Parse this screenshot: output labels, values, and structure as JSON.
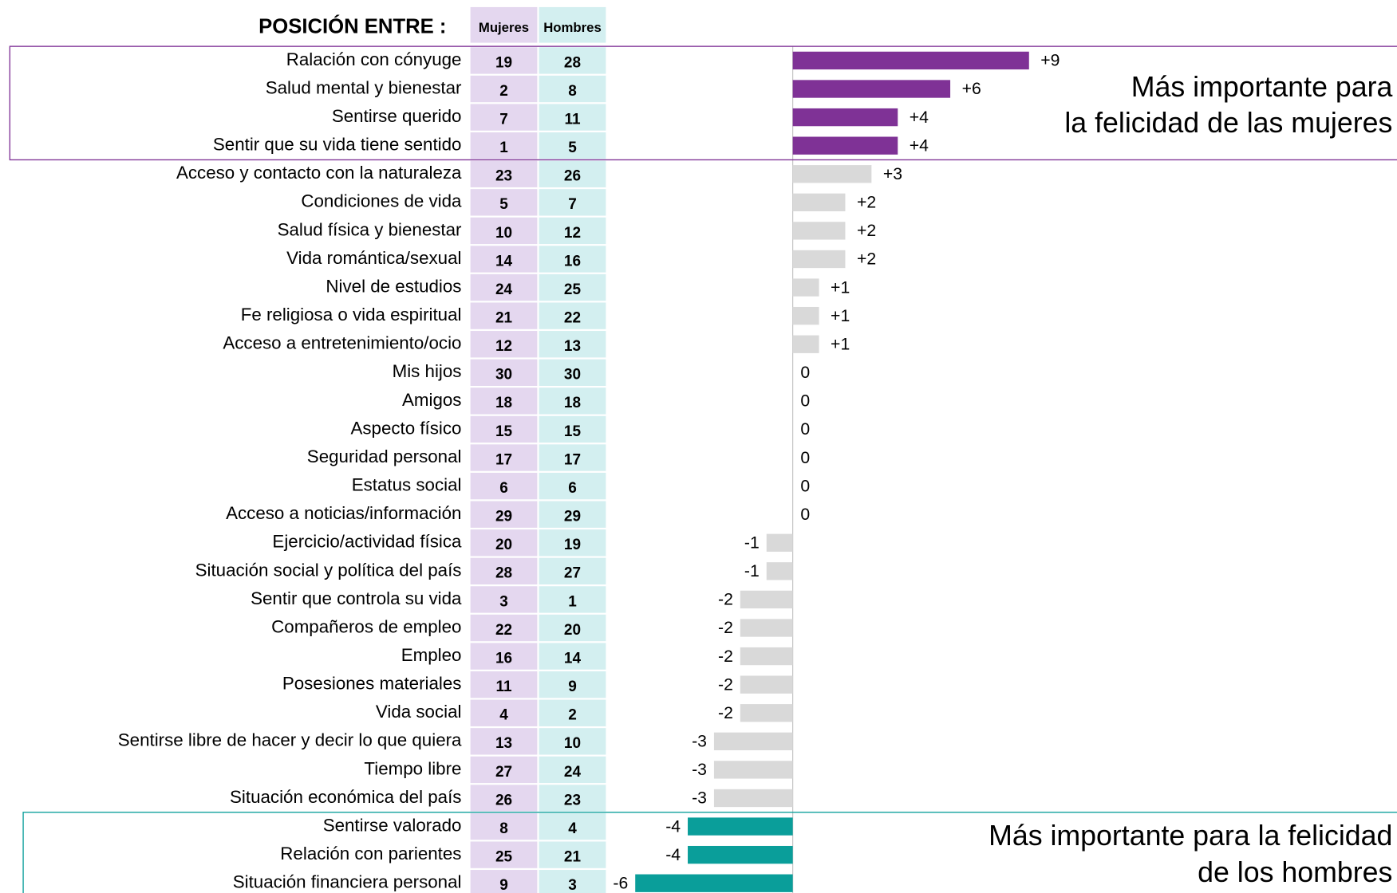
{
  "chart_data": {
    "type": "bar",
    "title": "POSICIÓN ENTRE :",
    "columns": [
      "Mujeres",
      "Hombres"
    ],
    "categories": [
      "Ralación con cónyuge",
      "Salud mental y bienestar",
      "Sentirse querido",
      "Sentir que su vida tiene sentido",
      "Acceso y contacto con la naturaleza",
      "Condiciones de vida",
      "Salud física y bienestar",
      "Vida romántica/sexual",
      "Nivel de estudios",
      "Fe religiosa o vida espiritual",
      "Acceso a entretenimiento/ocio",
      "Mis hijos",
      "Amigos",
      "Aspecto físico",
      "Seguridad personal",
      "Estatus social",
      "Acceso a noticias/información",
      "Ejercicio/actividad física",
      "Situación social y política del país",
      "Sentir que controla su vida",
      "Compañeros de empleo",
      "Empleo",
      "Posesiones materiales",
      "Vida social",
      "Sentirse libre de hacer y decir lo que quiera",
      "Tiempo libre",
      "Situación económica del país",
      "Sentirse valorado",
      "Relación con parientes",
      "Situación financiera personal"
    ],
    "mujeres": [
      19,
      2,
      7,
      1,
      23,
      5,
      10,
      14,
      24,
      21,
      12,
      30,
      18,
      15,
      17,
      6,
      29,
      20,
      28,
      3,
      22,
      16,
      11,
      4,
      13,
      27,
      26,
      8,
      25,
      9
    ],
    "hombres": [
      28,
      8,
      11,
      5,
      26,
      7,
      12,
      16,
      25,
      22,
      13,
      30,
      18,
      15,
      17,
      6,
      29,
      19,
      27,
      1,
      20,
      14,
      9,
      2,
      10,
      24,
      23,
      4,
      21,
      3
    ],
    "values": [
      9,
      6,
      4,
      4,
      3,
      2,
      2,
      2,
      1,
      1,
      1,
      0,
      0,
      0,
      0,
      0,
      0,
      -1,
      -1,
      -2,
      -2,
      -2,
      -2,
      -2,
      -3,
      -3,
      -3,
      -4,
      -4,
      -6
    ],
    "value_labels": [
      "+9",
      "+6",
      "+4",
      "+4",
      "+3",
      "+2",
      "+2",
      "+2",
      "+1",
      "+1",
      "+1",
      "0",
      "0",
      "0",
      "0",
      "0",
      "0",
      "-1",
      "-1",
      "-2",
      "-2",
      "-2",
      "-2",
      "-2",
      "-3",
      "-3",
      "-3",
      "-4",
      "-4",
      "-6"
    ],
    "colors": [
      "#7f3296",
      "#7f3296",
      "#7f3296",
      "#7f3296",
      "#d9d9d9",
      "#d9d9d9",
      "#d9d9d9",
      "#d9d9d9",
      "#d9d9d9",
      "#d9d9d9",
      "#d9d9d9",
      "#d9d9d9",
      "#d9d9d9",
      "#d9d9d9",
      "#d9d9d9",
      "#d9d9d9",
      "#d9d9d9",
      "#d9d9d9",
      "#d9d9d9",
      "#d9d9d9",
      "#d9d9d9",
      "#d9d9d9",
      "#d9d9d9",
      "#d9d9d9",
      "#d9d9d9",
      "#d9d9d9",
      "#d9d9d9",
      "#0a9e9a",
      "#0a9e9a",
      "#0a9e9a"
    ],
    "column_colors": [
      "#e4d7ef",
      "#d3eff0"
    ],
    "xlim": [
      -6,
      9
    ],
    "annotations": [
      {
        "lines": [
          "Más importante para",
          "la felicidad de las mujeres"
        ],
        "color": "#7f3296"
      },
      {
        "lines": [
          "Más importante para la felicidad",
          "de los hombres"
        ],
        "color": "#0a9e9a"
      }
    ]
  }
}
